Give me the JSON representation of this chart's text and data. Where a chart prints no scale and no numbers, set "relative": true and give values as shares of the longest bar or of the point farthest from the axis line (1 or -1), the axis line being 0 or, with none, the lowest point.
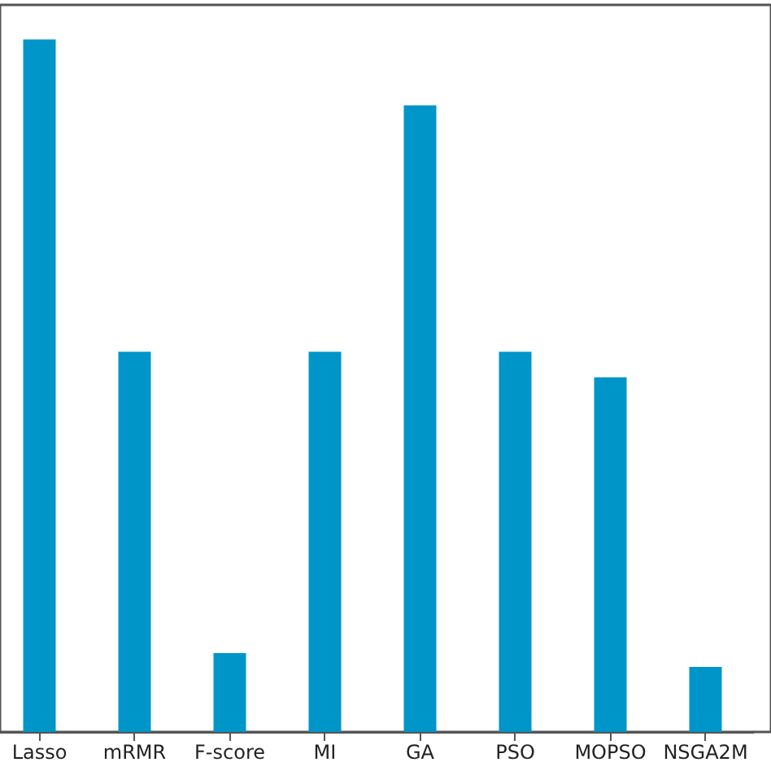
{
  "chart_data": {
    "type": "bar",
    "relative": true,
    "categories": [
      "Lasso",
      "mRMR",
      "F-score",
      "MI",
      "GA",
      "PSO",
      "MOPSO",
      "NSGA2M"
    ],
    "values": [
      1,
      0.549,
      0.114,
      0.549,
      0.905,
      0.549,
      0.512,
      0.094
    ],
    "color": "#0095c8",
    "grid": false
  }
}
